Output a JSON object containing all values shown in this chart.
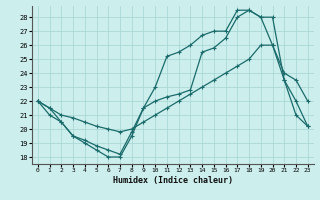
{
  "xlabel": "Humidex (Indice chaleur)",
  "background_color": "#cceeed",
  "grid_color": "#aad8d6",
  "line_color": "#1a6b6b",
  "xlim": [
    -0.5,
    23.5
  ],
  "ylim": [
    17.5,
    28.8
  ],
  "yticks": [
    18,
    19,
    20,
    21,
    22,
    23,
    24,
    25,
    26,
    27,
    28
  ],
  "xticks": [
    0,
    1,
    2,
    3,
    4,
    5,
    6,
    7,
    8,
    9,
    10,
    11,
    12,
    13,
    14,
    15,
    16,
    17,
    18,
    19,
    20,
    21,
    22,
    23
  ],
  "series1_x": [
    0,
    1,
    2,
    3,
    4,
    5,
    6,
    7,
    8,
    9,
    10,
    11,
    12,
    13,
    14,
    15,
    16,
    17,
    18,
    19,
    20,
    21,
    22,
    23
  ],
  "series1_y": [
    22.0,
    21.0,
    20.5,
    19.5,
    19.0,
    18.5,
    18.0,
    18.0,
    19.5,
    21.5,
    23.0,
    25.2,
    25.5,
    26.0,
    26.7,
    27.0,
    27.0,
    28.5,
    28.5,
    28.0,
    26.0,
    23.5,
    21.0,
    20.2
  ],
  "series2_x": [
    0,
    1,
    2,
    3,
    4,
    5,
    6,
    7,
    8,
    9,
    10,
    11,
    12,
    13,
    14,
    15,
    16,
    17,
    18,
    19,
    20,
    21,
    22,
    23
  ],
  "series2_y": [
    22.0,
    21.5,
    21.0,
    20.8,
    20.5,
    20.2,
    20.0,
    19.8,
    20.0,
    20.5,
    21.0,
    21.5,
    22.0,
    22.5,
    23.0,
    23.5,
    24.0,
    24.5,
    25.0,
    26.0,
    26.0,
    24.0,
    23.5,
    22.0
  ],
  "series3_x": [
    0,
    1,
    2,
    3,
    4,
    5,
    6,
    7,
    8,
    9,
    10,
    11,
    12,
    13,
    14,
    15,
    16,
    17,
    18,
    19,
    20,
    21,
    22,
    23
  ],
  "series3_y": [
    22.0,
    21.5,
    20.5,
    19.5,
    19.2,
    18.8,
    18.5,
    18.2,
    19.8,
    21.5,
    22.0,
    22.3,
    22.5,
    22.8,
    25.5,
    25.8,
    26.5,
    28.0,
    28.5,
    28.0,
    28.0,
    23.5,
    22.0,
    20.2
  ]
}
